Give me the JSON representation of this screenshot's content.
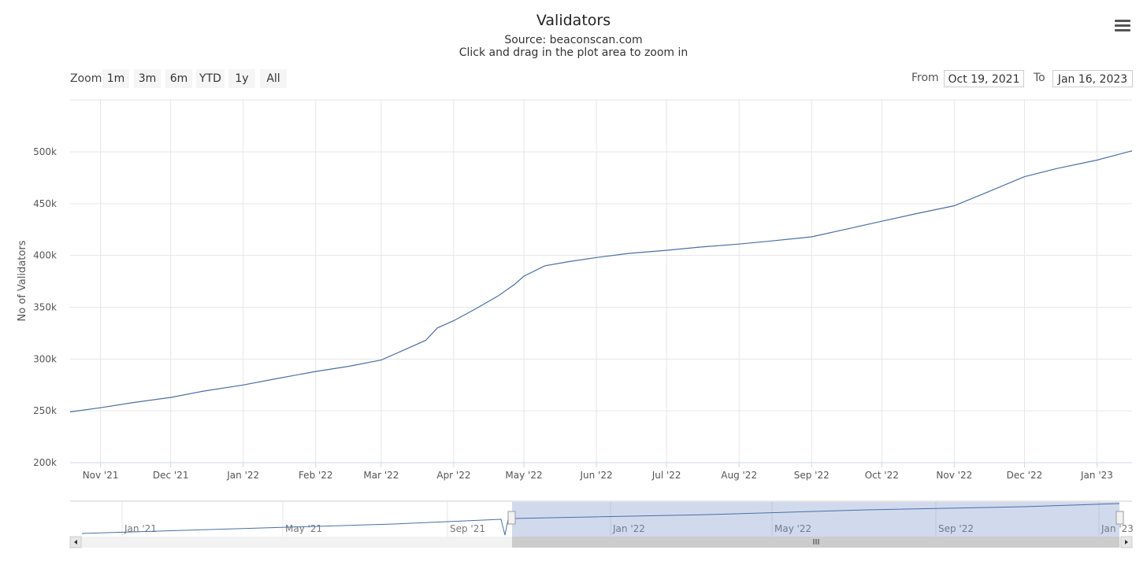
{
  "chart_data": {
    "type": "line",
    "title": "Validators",
    "subtitle": "Source: beaconscan.com",
    "hint": "Click and drag in the plot area to zoom in",
    "ylabel": "No of Validators",
    "ylim": [
      200000,
      500000
    ],
    "y_ticks": [
      "200k",
      "250k",
      "300k",
      "350k",
      "400k",
      "450k",
      "500k"
    ],
    "x_ticks": [
      "Nov '21",
      "Dec '21",
      "Jan '22",
      "Feb '22",
      "Mar '22",
      "Apr '22",
      "May '22",
      "Jun '22",
      "Jul '22",
      "Aug '22",
      "Sep '22",
      "Oct '22",
      "Nov '22",
      "Dec '22",
      "Jan '23"
    ],
    "x_range": [
      "2021-10-19",
      "2023-01-16"
    ],
    "series": [
      {
        "color": "#4a6fa5",
        "x": [
          "2021-10-19",
          "2021-11-01",
          "2021-11-15",
          "2021-12-01",
          "2021-12-15",
          "2022-01-01",
          "2022-01-15",
          "2022-02-01",
          "2022-02-15",
          "2022-03-01",
          "2022-03-10",
          "2022-03-20",
          "2022-03-25",
          "2022-04-01",
          "2022-04-10",
          "2022-04-20",
          "2022-04-27",
          "2022-05-01",
          "2022-05-10",
          "2022-05-20",
          "2022-06-01",
          "2022-06-15",
          "2022-07-01",
          "2022-07-15",
          "2022-08-01",
          "2022-08-15",
          "2022-09-01",
          "2022-09-15",
          "2022-10-01",
          "2022-10-15",
          "2022-11-01",
          "2022-11-15",
          "2022-12-01",
          "2022-12-15",
          "2023-01-01",
          "2023-01-16"
        ],
        "y": [
          249000,
          253000,
          258000,
          263000,
          269000,
          275000,
          281000,
          288000,
          293000,
          299000,
          308000,
          318000,
          330000,
          337000,
          348000,
          361000,
          372000,
          380000,
          390000,
          394000,
          398000,
          402000,
          405000,
          408000,
          411000,
          414000,
          418000,
          425000,
          433000,
          440000,
          448000,
          461000,
          476000,
          484000,
          492000,
          501000
        ]
      }
    ],
    "navigator": {
      "x_ticks": [
        "Jan '21",
        "May '21",
        "Sep '21",
        "Jan '22",
        "May '22",
        "Sep '22",
        "Jan '23"
      ]
    }
  },
  "toolbar": {
    "zoom_label": "Zoom",
    "zoom_buttons": [
      "1m",
      "3m",
      "6m",
      "YTD",
      "1y",
      "All"
    ],
    "from_label": "From",
    "from_value": "Oct 19, 2021",
    "to_label": "To",
    "to_value": "Jan 16, 2023"
  },
  "icons": {
    "menu": "hamburger-menu-icon"
  }
}
